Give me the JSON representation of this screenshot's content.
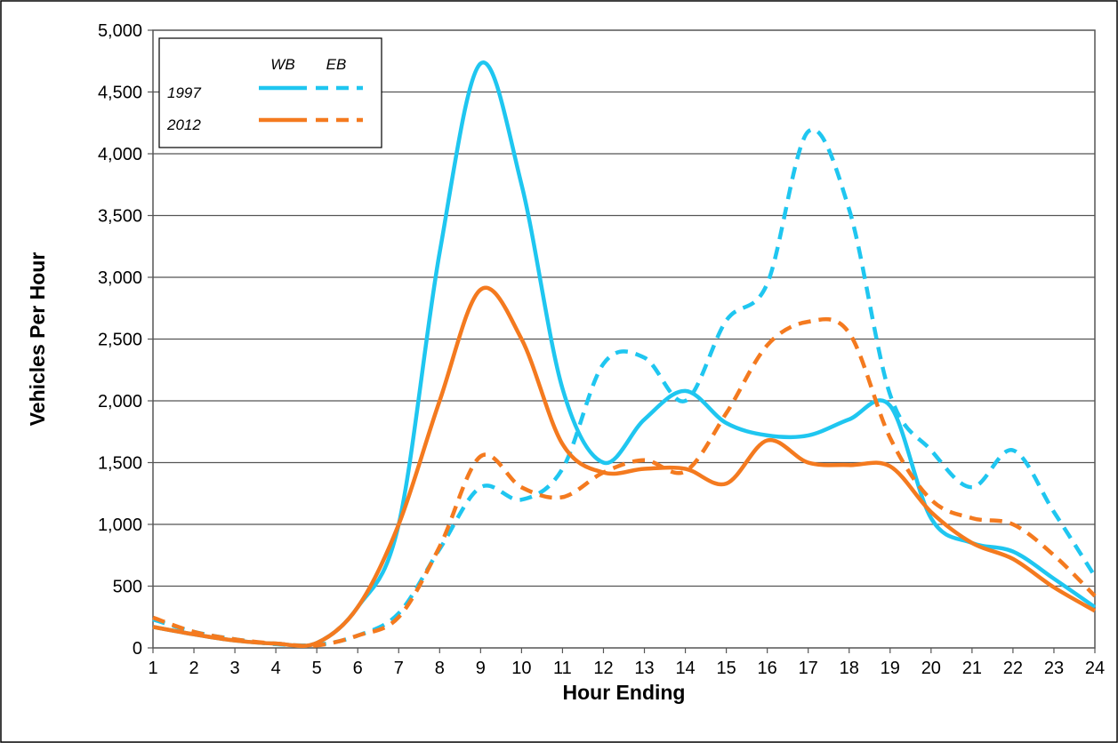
{
  "chart_data": {
    "type": "line",
    "xlabel": "Hour Ending",
    "ylabel": "Vehicles Per Hour",
    "x": [
      1,
      2,
      3,
      4,
      5,
      6,
      7,
      8,
      9,
      10,
      11,
      12,
      13,
      14,
      15,
      16,
      17,
      18,
      19,
      20,
      21,
      22,
      23,
      24
    ],
    "x_ticks": [
      "1",
      "2",
      "3",
      "4",
      "5",
      "6",
      "7",
      "8",
      "9",
      "10",
      "11",
      "12",
      "13",
      "14",
      "15",
      "16",
      "17",
      "18",
      "19",
      "20",
      "21",
      "22",
      "23",
      "24"
    ],
    "xlim": [
      1,
      24
    ],
    "ylim": [
      0,
      5000
    ],
    "y_ticks": [
      0,
      500,
      1000,
      1500,
      2000,
      2500,
      3000,
      3500,
      4000,
      4500,
      5000
    ],
    "y_tick_labels": [
      "0",
      "500",
      "1,000",
      "1,500",
      "2,000",
      "2,500",
      "3,000",
      "3,500",
      "4,000",
      "4,500",
      "5,000"
    ],
    "grid": "horizontal",
    "legend": {
      "placement": "top-left",
      "column_headers": [
        "WB",
        "EB"
      ],
      "row_labels": [
        "1997",
        "2012"
      ]
    },
    "series": [
      {
        "year": "1997",
        "direction": "WB",
        "color": "#1fc6f0",
        "dash": "solid",
        "values": [
          170,
          110,
          60,
          35,
          40,
          330,
          1000,
          3200,
          4730,
          3750,
          2100,
          1500,
          1850,
          2080,
          1820,
          1720,
          1720,
          1850,
          1960,
          1050,
          850,
          780,
          560,
          330
        ]
      },
      {
        "year": "1997",
        "direction": "EB",
        "color": "#1fc6f0",
        "dash": "dashed",
        "values": [
          230,
          130,
          70,
          30,
          25,
          100,
          280,
          800,
          1300,
          1200,
          1450,
          2300,
          2350,
          2000,
          2650,
          2950,
          4180,
          3550,
          2050,
          1600,
          1300,
          1600,
          1100,
          580
        ]
      },
      {
        "year": "2012",
        "direction": "WB",
        "color": "#f47a1f",
        "dash": "solid",
        "values": [
          170,
          110,
          60,
          35,
          40,
          330,
          1000,
          2000,
          2900,
          2500,
          1650,
          1420,
          1450,
          1450,
          1330,
          1680,
          1500,
          1480,
          1470,
          1100,
          850,
          720,
          490,
          300
        ]
      },
      {
        "year": "2012",
        "direction": "EB",
        "color": "#f47a1f",
        "dash": "dashed",
        "values": [
          245,
          130,
          70,
          35,
          20,
          100,
          250,
          820,
          1550,
          1300,
          1220,
          1420,
          1520,
          1430,
          1900,
          2450,
          2640,
          2550,
          1700,
          1200,
          1050,
          1000,
          750,
          420
        ]
      }
    ]
  }
}
